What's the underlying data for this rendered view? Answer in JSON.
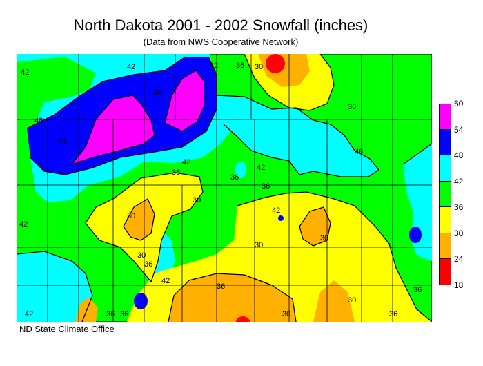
{
  "title": "North Dakota 2001 - 2002 Snowfall (inches)",
  "subtitle": "(Data from NWS Cooperative Network)",
  "footer": "ND State Climate Office",
  "legend": [
    {
      "label": "60",
      "color": "#ff00ff"
    },
    {
      "label": "54",
      "color": "#0000ff"
    },
    {
      "label": "48",
      "color": "#00ffff"
    },
    {
      "label": "42",
      "color": "#00ff00"
    },
    {
      "label": "36",
      "color": "#ffff00"
    },
    {
      "label": "30",
      "color": "#ffb000"
    },
    {
      "label": "24",
      "color": "#ff0000"
    },
    {
      "label": "18",
      "color": ""
    }
  ],
  "contour_labels": [
    "42",
    "42",
    "42",
    "42",
    "42",
    "42",
    "42",
    "42",
    "42",
    "48",
    "48",
    "48",
    "54",
    "36",
    "36",
    "36",
    "36",
    "36",
    "36",
    "36",
    "36",
    "36",
    "36",
    "36",
    "30",
    "30",
    "30",
    "30",
    "30",
    "30",
    "30",
    "30"
  ]
}
